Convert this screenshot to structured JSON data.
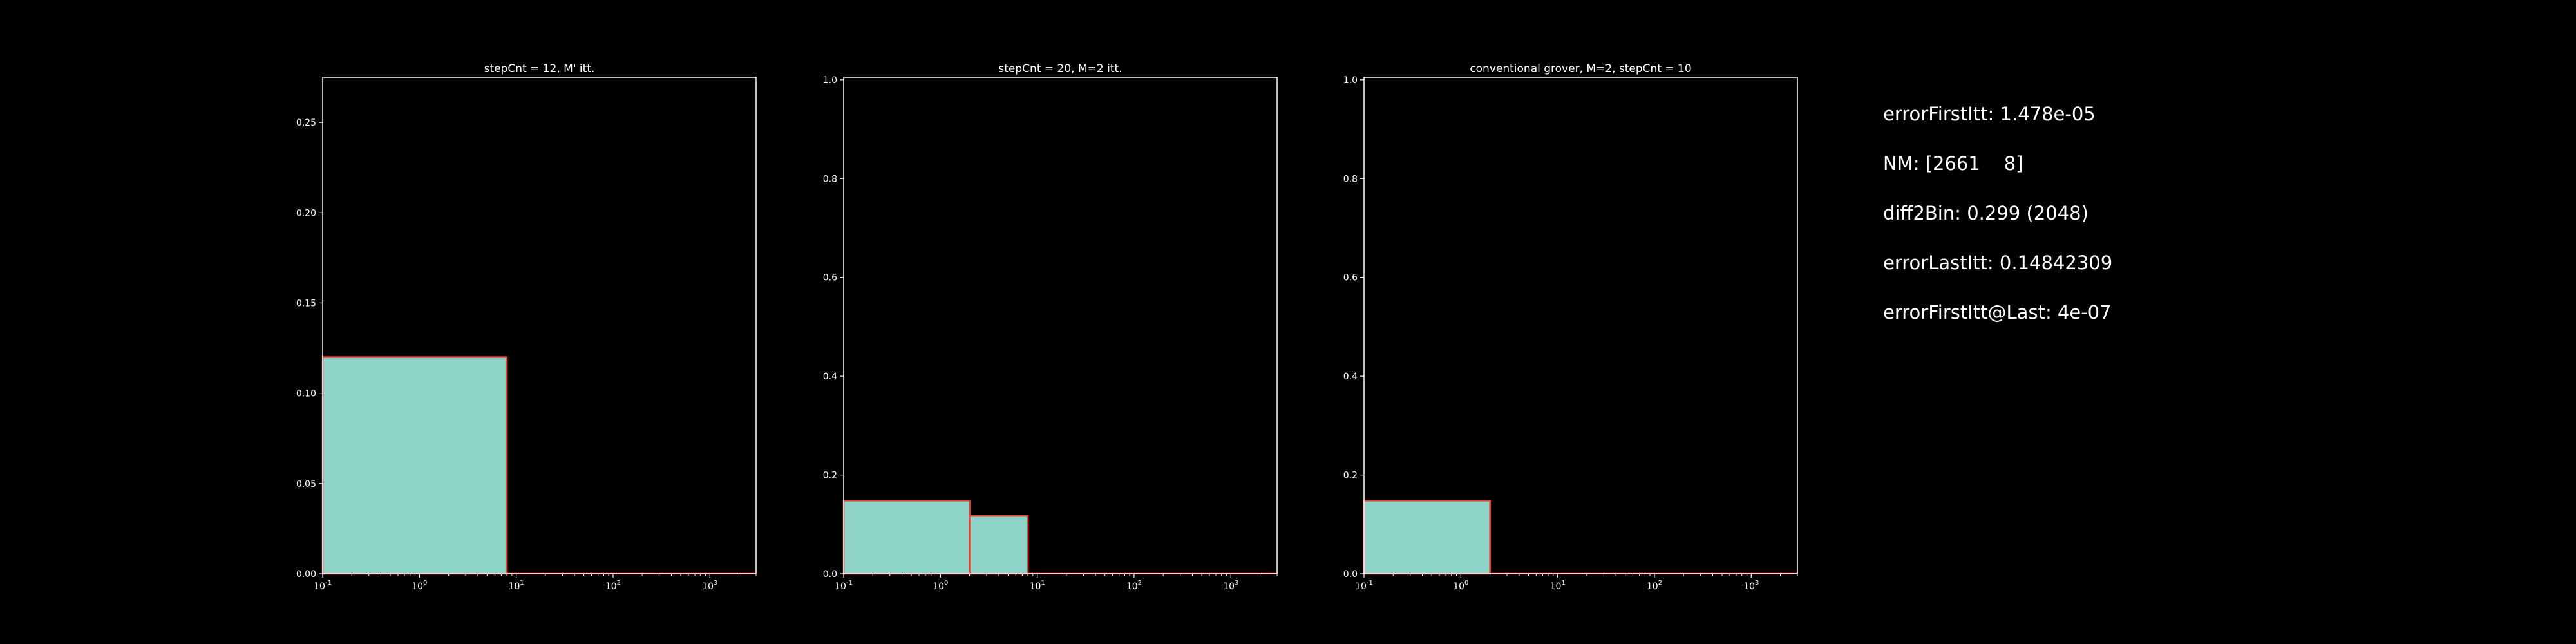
{
  "chart_data": [
    {
      "type": "histogram",
      "title": "stepCnt = 12, M' itt.",
      "xscale": "log",
      "xlim": [
        0.1,
        3000
      ],
      "ylim": [
        0,
        0.275
      ],
      "xticks": [
        {
          "value": 0.1,
          "exp": "-1"
        },
        {
          "value": 1,
          "exp": "0"
        },
        {
          "value": 10,
          "exp": "1"
        },
        {
          "value": 100,
          "exp": "2"
        },
        {
          "value": 1000,
          "exp": "3"
        }
      ],
      "yticks": [
        {
          "value": 0,
          "label": "0.00"
        },
        {
          "value": 0.05,
          "label": "0.05"
        },
        {
          "value": 0.1,
          "label": "0.10"
        },
        {
          "value": 0.15,
          "label": "0.15"
        },
        {
          "value": 0.2,
          "label": "0.20"
        },
        {
          "value": 0.25,
          "label": "0.25"
        }
      ],
      "bins": [
        {
          "x0": 0.1,
          "x1": 8,
          "value": 0.12
        },
        {
          "x0": 8,
          "x1": 3000,
          "value": 0
        }
      ],
      "fill_color": "#8dd3c7",
      "edge_color": "#e04a3c",
      "grid": false
    },
    {
      "type": "histogram",
      "title": "stepCnt = 20, M=2 itt.",
      "xscale": "log",
      "xlim": [
        0.1,
        3000
      ],
      "ylim": [
        0,
        1.005
      ],
      "xticks": [
        {
          "value": 0.1,
          "exp": "-1"
        },
        {
          "value": 1,
          "exp": "0"
        },
        {
          "value": 10,
          "exp": "1"
        },
        {
          "value": 100,
          "exp": "2"
        },
        {
          "value": 1000,
          "exp": "3"
        }
      ],
      "yticks": [
        {
          "value": 0,
          "label": "0.0"
        },
        {
          "value": 0.2,
          "label": "0.2"
        },
        {
          "value": 0.4,
          "label": "0.4"
        },
        {
          "value": 0.6,
          "label": "0.6"
        },
        {
          "value": 0.8,
          "label": "0.8"
        },
        {
          "value": 1.0,
          "label": "1.0"
        }
      ],
      "bins": [
        {
          "x0": 0.1,
          "x1": 2,
          "value": 0.148
        },
        {
          "x0": 2,
          "x1": 8,
          "value": 0.117
        },
        {
          "x0": 8,
          "x1": 3000,
          "value": 0
        }
      ],
      "fill_color": "#8dd3c7",
      "edge_color": "#e04a3c",
      "grid": false
    },
    {
      "type": "histogram",
      "title": "conventional grover, M=2, stepCnt = 10",
      "xscale": "log",
      "xlim": [
        0.1,
        3000
      ],
      "ylim": [
        0,
        1.005
      ],
      "xticks": [
        {
          "value": 0.1,
          "exp": "-1"
        },
        {
          "value": 1,
          "exp": "0"
        },
        {
          "value": 10,
          "exp": "1"
        },
        {
          "value": 100,
          "exp": "2"
        },
        {
          "value": 1000,
          "exp": "3"
        }
      ],
      "yticks": [
        {
          "value": 0,
          "label": "0.0"
        },
        {
          "value": 0.2,
          "label": "0.2"
        },
        {
          "value": 0.4,
          "label": "0.4"
        },
        {
          "value": 0.6,
          "label": "0.6"
        },
        {
          "value": 0.8,
          "label": "0.8"
        },
        {
          "value": 1.0,
          "label": "1.0"
        }
      ],
      "bins": [
        {
          "x0": 0.1,
          "x1": 2,
          "value": 0.148
        },
        {
          "x0": 2,
          "x1": 3000,
          "value": 0
        }
      ],
      "fill_color": "#8dd3c7",
      "edge_color": "#e04a3c",
      "grid": false
    }
  ],
  "info": {
    "lines": [
      "errorFirstItt: 1.478e-05",
      "NM: [2661    8]",
      "diff2Bin: 0.299 (2048)",
      "errorLastItt: 0.14842309",
      "errorFirstItt@Last: 4e-07"
    ]
  },
  "colors": {
    "background": "#000000",
    "axes": "#ffffff",
    "text": "#ffffff"
  }
}
